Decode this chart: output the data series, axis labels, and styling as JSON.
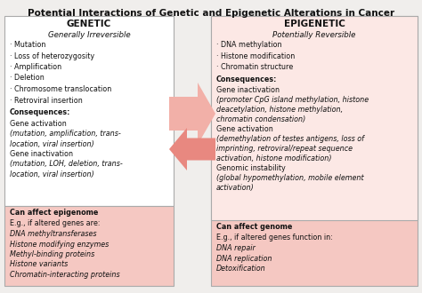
{
  "title": "Potential Interactions of Genetic and Epigenetic Alterations in Cancer",
  "title_fontsize": 7.5,
  "bg_color": "#f0eeec",
  "left_box_bg": "#ffffff",
  "right_box_bg": "#f5c8c2",
  "left_bottom_bg": "#f5c8c2",
  "arrow_color": "#e88880",
  "arrow_color_light": "#f2b0a8",
  "border_color": "#aaaaaa",
  "left_header": "GENETIC",
  "left_subheader": "Generally Irreversible",
  "left_bullets": [
    "· Mutation",
    "· Loss of heterozygosity",
    "· Amplification",
    "· Deletion",
    "· Chromosome translocation",
    "· Retroviral insertion"
  ],
  "left_consequences_label": "Consequences:",
  "left_consequences_lines": [
    [
      "Gene activation",
      false
    ],
    [
      "(mutation, amplification, trans-",
      true
    ],
    [
      "location, viral insertion)",
      true
    ],
    [
      "Gene inactivation",
      false
    ],
    [
      "(mutation, LOH, deletion, trans-",
      true
    ],
    [
      "location, viral insertion)",
      true
    ]
  ],
  "left_bottom_label": "Can affect epigenome",
  "left_bottom_lines": [
    [
      "E.g., if altered genes are:",
      false
    ],
    [
      "DNA methyltransferases",
      true
    ],
    [
      "Histone modifying enzymes",
      true
    ],
    [
      "Methyl-binding proteins",
      true
    ],
    [
      "Histone variants",
      true
    ],
    [
      "Chromatin-interacting proteins",
      true
    ]
  ],
  "right_header": "EPIGENETIC",
  "right_subheader": "Potentially Reversible",
  "right_bullets": [
    "· DNA methylation",
    "· Histone modification",
    "· Chromatin structure"
  ],
  "right_consequences_label": "Consequences:",
  "right_consequences_lines": [
    [
      "Gene inactivation",
      false
    ],
    [
      "(promoter CpG island methylation, histone",
      true
    ],
    [
      "deacetylation, histone methylation,",
      true
    ],
    [
      "chromatin condensation)",
      true
    ],
    [
      "Gene activation",
      false
    ],
    [
      "(demethylation of testes antigens, loss of",
      true
    ],
    [
      "imprinting, retroviral/repeat sequence",
      true
    ],
    [
      "activation, histone modification)",
      true
    ],
    [
      "Genomic instability",
      false
    ],
    [
      "(global hypomethylation, mobile element",
      true
    ],
    [
      "activation)",
      true
    ]
  ],
  "right_bottom_label": "Can affect genome",
  "right_bottom_lines": [
    [
      "E.g., if altered genes function in:",
      false
    ],
    [
      "DNA repair",
      true
    ],
    [
      "DNA replication",
      true
    ],
    [
      "Detoxification",
      true
    ]
  ]
}
